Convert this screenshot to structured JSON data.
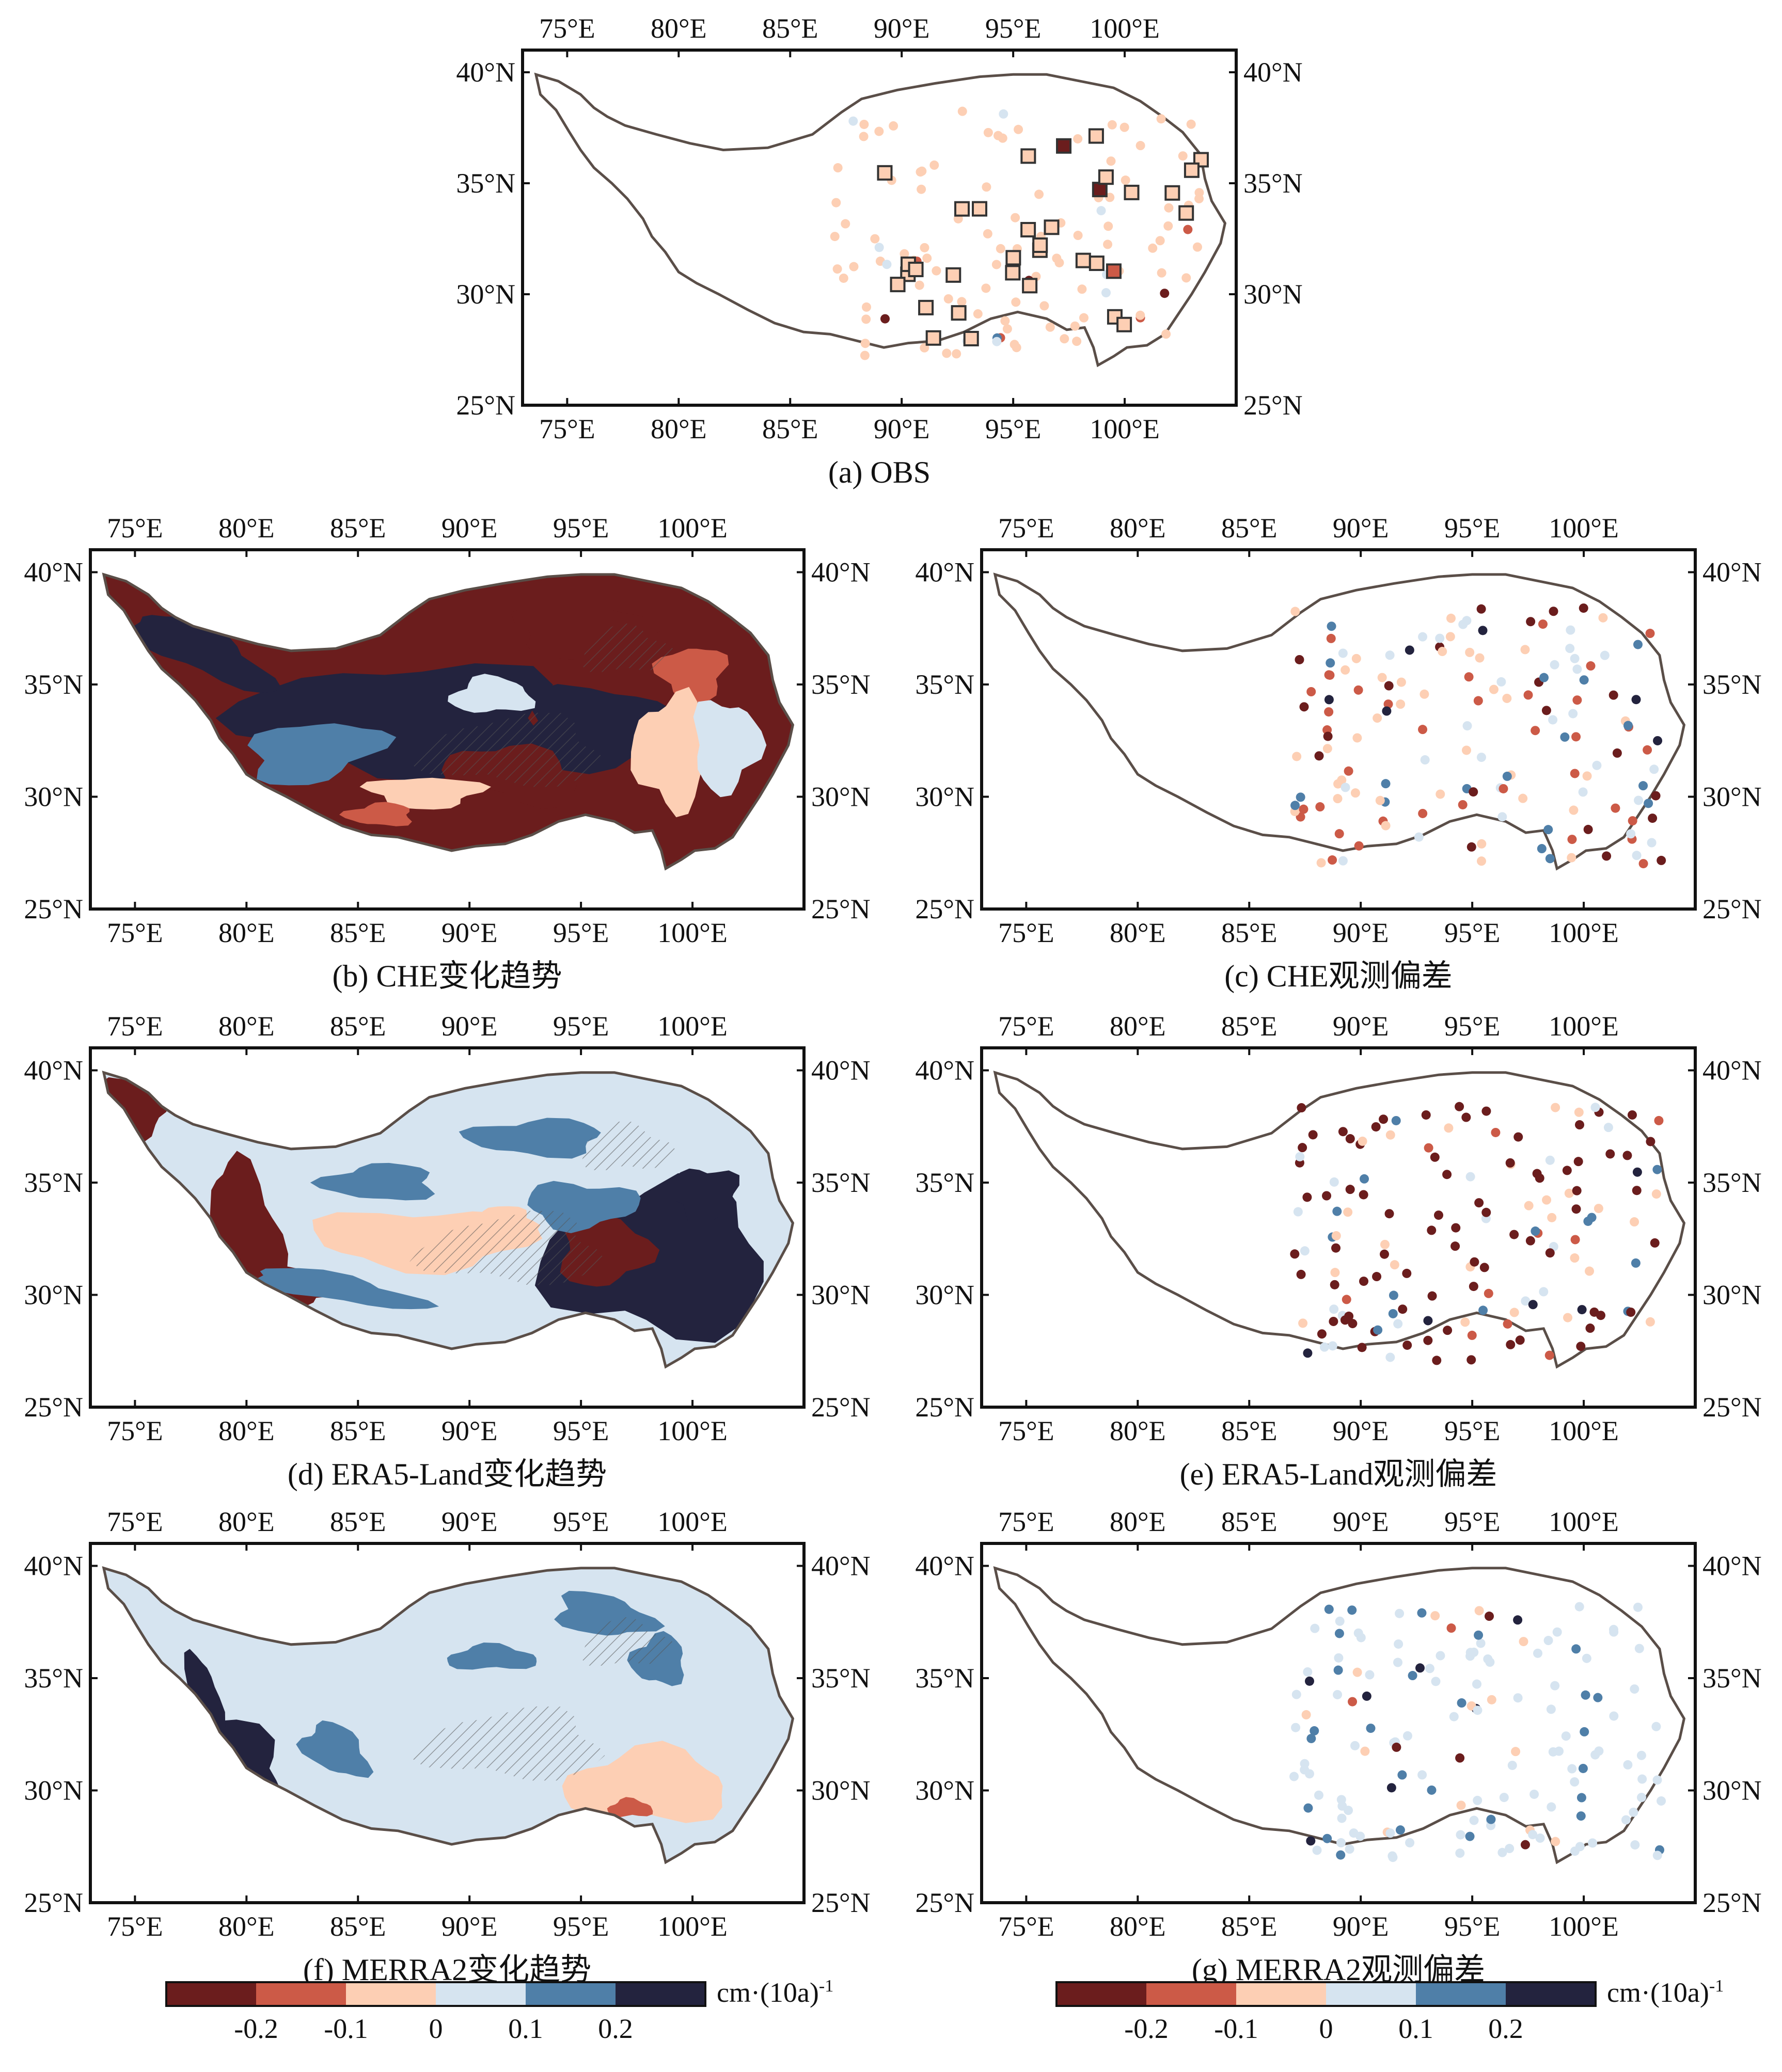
{
  "figure": {
    "lon_ticks": [
      "75°E",
      "80°E",
      "85°E",
      "90°E",
      "95°E",
      "100°E"
    ],
    "lat_ticks": [
      "40°N",
      "35°N",
      "30°N",
      "25°N"
    ],
    "lon_values": [
      75,
      80,
      85,
      90,
      95,
      100
    ],
    "lat_values": [
      40,
      35,
      30,
      25
    ],
    "extent": {
      "lon": [
        73,
        105
      ],
      "lat": [
        25,
        41
      ]
    }
  },
  "panels": [
    {
      "id": "a",
      "caption": "(a) OBS",
      "kind": "stations"
    },
    {
      "id": "b",
      "caption": "(b) CHE变化趋势",
      "kind": "field"
    },
    {
      "id": "c",
      "caption": "(c) CHE观测偏差",
      "kind": "stations"
    },
    {
      "id": "d",
      "caption": "(d) ERA5-Land变化趋势",
      "kind": "field"
    },
    {
      "id": "e",
      "caption": "(e) ERA5-Land观测偏差",
      "kind": "stations"
    },
    {
      "id": "f",
      "caption": "(f) MERRA2变化趋势",
      "kind": "field"
    },
    {
      "id": "g",
      "caption": "(g) MERRA2观测偏差",
      "kind": "stations"
    }
  ],
  "colorbar": {
    "colors": [
      "#6b1d1d",
      "#cc5a47",
      "#fdcfb4",
      "#d6e4f0",
      "#4f7fa8",
      "#23233e"
    ],
    "bounds": [
      -0.3,
      -0.2,
      -0.1,
      0,
      0.1,
      0.2,
      0.3
    ],
    "tick_labels": [
      "-0.2",
      "-0.1",
      "0",
      "0.1",
      "0.2"
    ],
    "unit": "cm·(10a)",
    "unit_sup": "-1"
  }
}
